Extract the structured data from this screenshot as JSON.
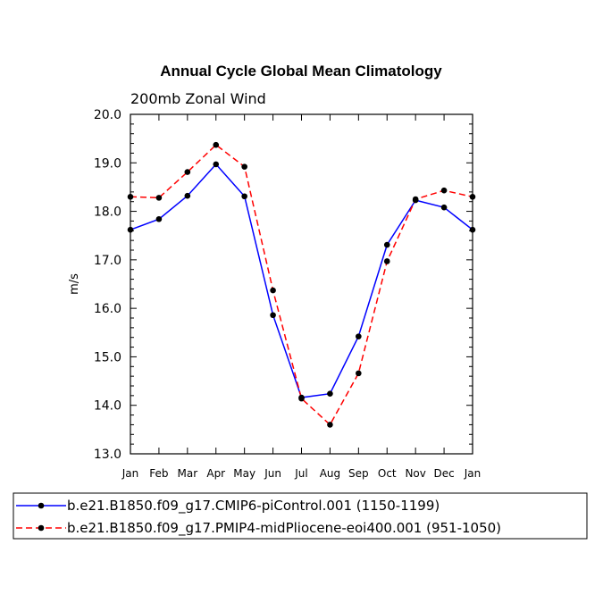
{
  "chart_data": {
    "type": "line",
    "title": "Annual Cycle Global Mean Climatology",
    "subtitle": "200mb Zonal Wind",
    "ylabel": "m/s",
    "xlabel": "",
    "ylim": [
      13.0,
      20.0
    ],
    "yticks": [
      "13.0",
      "14.0",
      "15.0",
      "16.0",
      "17.0",
      "18.0",
      "19.0",
      "20.0"
    ],
    "categories": [
      "Jan",
      "Feb",
      "Mar",
      "Apr",
      "May",
      "Jun",
      "Jul",
      "Aug",
      "Sep",
      "Oct",
      "Nov",
      "Dec",
      "Jan"
    ],
    "series": [
      {
        "name": "b.e21.B1850.f09_g17.CMIP6-piControl.001 (1150-1199)",
        "color": "#0000ff",
        "style": "solid",
        "values": [
          17.62,
          17.84,
          18.32,
          18.97,
          18.31,
          15.86,
          14.16,
          14.24,
          15.42,
          17.31,
          18.23,
          18.08,
          17.62
        ]
      },
      {
        "name": "b.e21.B1850.f09_g17.PMIP4-midPliocene-eoi400.001 (951-1050)",
        "color": "#ff0000",
        "style": "dashed",
        "values": [
          18.3,
          18.28,
          18.81,
          19.37,
          18.92,
          16.37,
          14.14,
          13.6,
          14.66,
          16.97,
          18.25,
          18.43,
          18.3
        ]
      }
    ],
    "legend_position": "bottom"
  }
}
